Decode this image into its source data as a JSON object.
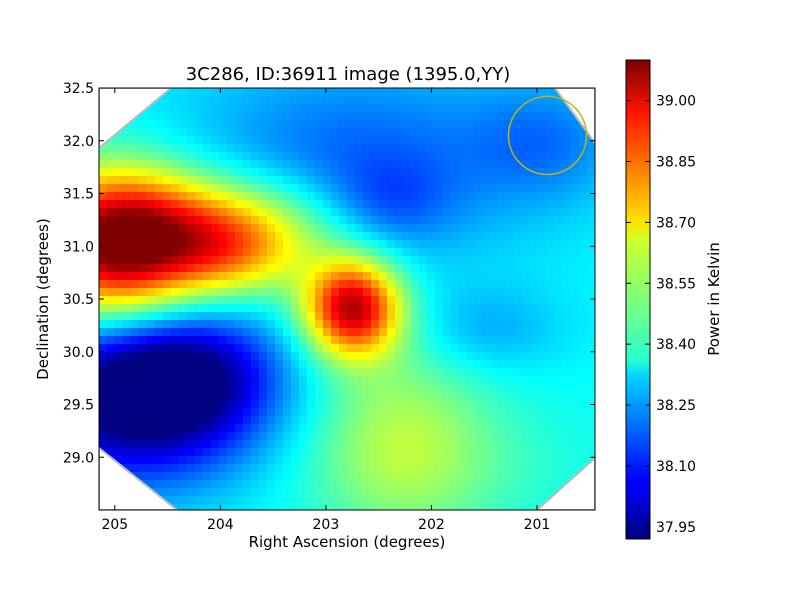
{
  "chart_data": {
    "type": "heatmap",
    "title": "3C286, ID:36911 image (1395.0,YY)",
    "xlabel": "Right Ascension (degrees)",
    "ylabel": "Declination (degrees)",
    "colorbar_label": "Power in Kelvin",
    "xlim": [
      205.15,
      200.45
    ],
    "ylim": [
      28.5,
      32.5
    ],
    "x_ticks": [
      205,
      204,
      203,
      202,
      201
    ],
    "x_tick_labels": [
      "205",
      "204",
      "203",
      "202",
      "201"
    ],
    "y_ticks": [
      29.0,
      29.5,
      30.0,
      30.5,
      31.0,
      31.5,
      32.0,
      32.5
    ],
    "y_tick_labels": [
      "29.0",
      "29.5",
      "30.0",
      "30.5",
      "31.0",
      "31.5",
      "32.0",
      "32.5"
    ],
    "colorbar_range": [
      37.92,
      39.1
    ],
    "colorbar_ticks": [
      37.95,
      38.1,
      38.25,
      38.4,
      38.55,
      38.7,
      38.85,
      39.0
    ],
    "colorbar_tick_labels": [
      "37.95",
      "38.10",
      "38.25",
      "38.40",
      "38.55",
      "38.70",
      "38.85",
      "39.00"
    ],
    "colormap": "jet",
    "base_level": 38.36,
    "features": [
      {
        "ra": 205.0,
        "dec": 31.0,
        "amplitude": 0.7,
        "sigma_ra": 0.55,
        "sigma_dec": 0.5
      },
      {
        "ra": 204.0,
        "dec": 31.2,
        "amplitude": 0.35,
        "sigma_ra": 0.8,
        "sigma_dec": 0.35
      },
      {
        "ra": 203.9,
        "dec": 30.9,
        "amplitude": 0.25,
        "sigma_ra": 0.5,
        "sigma_dec": 0.3
      },
      {
        "ra": 202.75,
        "dec": 30.42,
        "amplitude": 0.68,
        "sigma_ra": 0.32,
        "sigma_dec": 0.32
      },
      {
        "ra": 204.8,
        "dec": 29.55,
        "amplitude": -0.48,
        "sigma_ra": 0.8,
        "sigma_dec": 0.55
      },
      {
        "ra": 204.3,
        "dec": 29.8,
        "amplitude": -0.22,
        "sigma_ra": 0.6,
        "sigma_dec": 0.4
      },
      {
        "ra": 202.7,
        "dec": 31.8,
        "amplitude": -0.18,
        "sigma_ra": 1.2,
        "sigma_dec": 0.7
      },
      {
        "ra": 202.4,
        "dec": 31.4,
        "amplitude": -0.1,
        "sigma_ra": 0.4,
        "sigma_dec": 0.3
      },
      {
        "ra": 201.5,
        "dec": 30.2,
        "amplitude": -0.1,
        "sigma_ra": 0.5,
        "sigma_dec": 0.3
      },
      {
        "ra": 202.3,
        "dec": 29.2,
        "amplitude": 0.18,
        "sigma_ra": 0.6,
        "sigma_dec": 0.7
      },
      {
        "ra": 201.8,
        "dec": 28.9,
        "amplitude": 0.06,
        "sigma_ra": 1.0,
        "sigma_dec": 0.5
      },
      {
        "ra": 200.9,
        "dec": 32.0,
        "amplitude": -0.12,
        "sigma_ra": 0.5,
        "sigma_dec": 0.4
      }
    ],
    "beam_marker": {
      "ra": 200.9,
      "dec": 32.05,
      "radius_deg": 0.37,
      "color": "#c8b400"
    },
    "masked_corners_color": "#ffffff"
  }
}
